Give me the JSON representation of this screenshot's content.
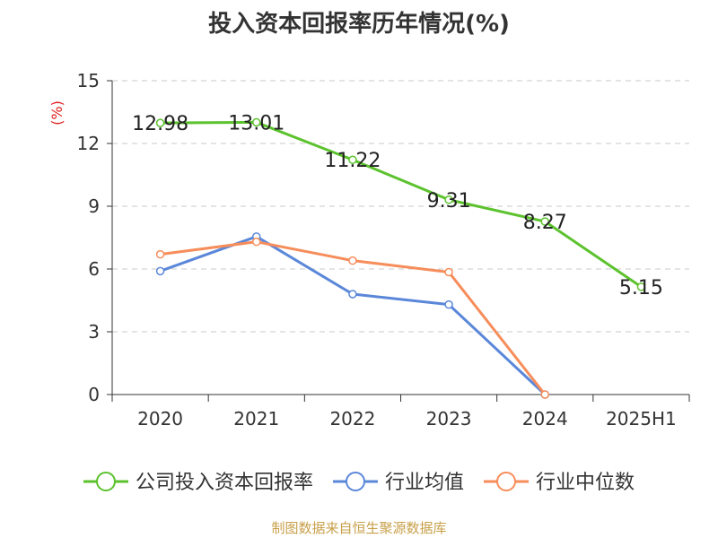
{
  "chart_data": {
    "type": "line",
    "title": "投入资本回报率历年情况(%)",
    "ylabel": "(%)",
    "ylim": [
      0,
      15
    ],
    "yticks": [
      0,
      3,
      6,
      9,
      12,
      15
    ],
    "grid": true,
    "legend_position": "bottom",
    "categories": [
      "2020",
      "2021",
      "2022",
      "2023",
      "2024",
      "2025H1"
    ],
    "series": [
      {
        "name": "公司投入资本回报率",
        "color": "#5cc22e",
        "values": [
          12.98,
          13.01,
          11.22,
          9.31,
          8.27,
          5.15
        ],
        "data_labels": [
          "12.98",
          "13.01",
          "11.22",
          "9.31",
          "8.27",
          "5.15"
        ]
      },
      {
        "name": "行业均值",
        "color": "#5b87d9",
        "values": [
          5.9,
          7.55,
          4.8,
          4.3,
          0,
          null
        ]
      },
      {
        "name": "行业中位数",
        "color": "#f68d5a",
        "values": [
          6.7,
          7.3,
          6.4,
          5.85,
          0,
          null
        ]
      }
    ],
    "source": "制图数据来自恒生聚源数据库"
  }
}
